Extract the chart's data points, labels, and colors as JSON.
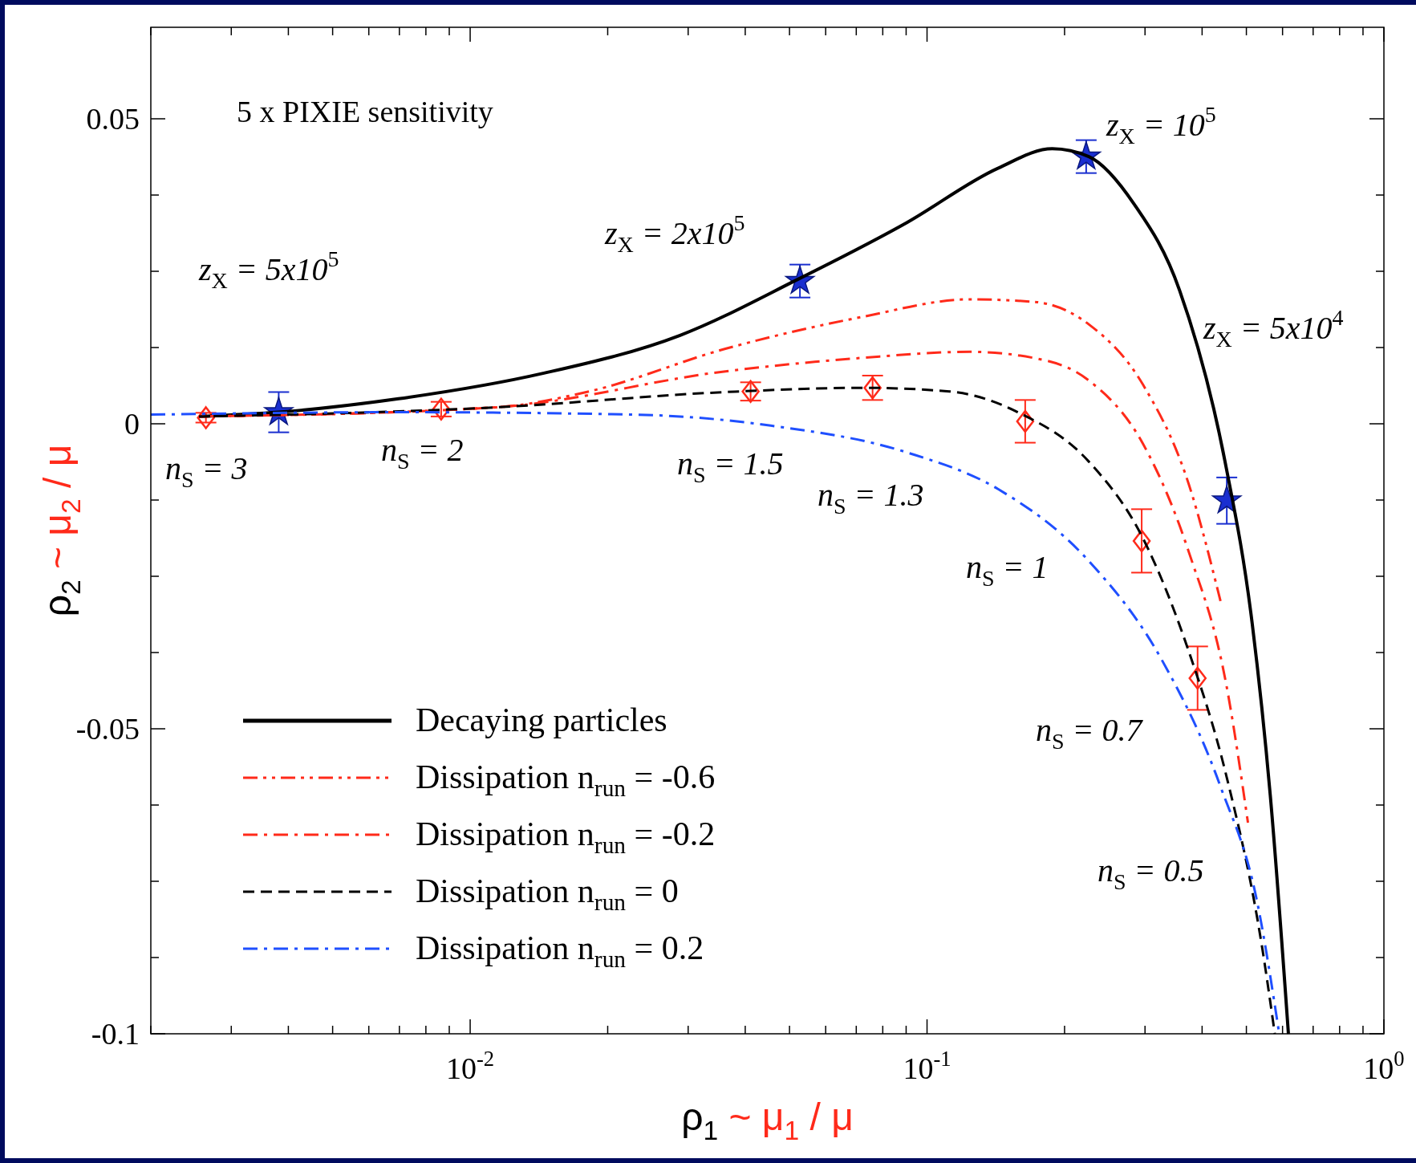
{
  "chart_data": {
    "type": "line",
    "xlabel": "ρ$_{1}$  ~ μ$_{1}$ / μ",
    "ylabel": "ρ$_{2}$  ~ μ$_{2}$ / μ",
    "log": "x",
    "xlim": [
      0.002,
      1
    ],
    "ylim": [
      -0.1,
      0.065
    ],
    "xticks": [
      {
        "value": 0.002,
        "label": null
      },
      {
        "value": 0.003,
        "label": null
      },
      {
        "value": 0.004,
        "label": null
      },
      {
        "value": 0.005,
        "label": null
      },
      {
        "value": 0.006,
        "label": null
      },
      {
        "value": 0.007,
        "label": null
      },
      {
        "value": 0.008,
        "label": null
      },
      {
        "value": 0.009,
        "label": null
      },
      {
        "value": 0.01,
        "label": "10$^{-2}$"
      },
      {
        "value": 0.02,
        "label": null
      },
      {
        "value": 0.03,
        "label": null
      },
      {
        "value": 0.04,
        "label": null
      },
      {
        "value": 0.05,
        "label": null
      },
      {
        "value": 0.06,
        "label": null
      },
      {
        "value": 0.07,
        "label": null
      },
      {
        "value": 0.08,
        "label": null
      },
      {
        "value": 0.09,
        "label": null
      },
      {
        "value": 0.1,
        "label": "10$^{-1}$"
      },
      {
        "value": 0.2,
        "label": null
      },
      {
        "value": 0.3,
        "label": null
      },
      {
        "value": 0.4,
        "label": null
      },
      {
        "value": 0.5,
        "label": null
      },
      {
        "value": 0.6,
        "label": null
      },
      {
        "value": 0.7,
        "label": null
      },
      {
        "value": 0.8,
        "label": null
      },
      {
        "value": 0.9,
        "label": null
      },
      {
        "value": 1,
        "label": "10$^{0}$"
      }
    ],
    "yticks": [
      -0.1,
      {
        "value": -0.0875,
        "label": null
      },
      {
        "value": -0.075,
        "label": null
      },
      {
        "value": -0.0625,
        "label": null
      },
      -0.05,
      {
        "value": -0.0375,
        "label": null
      },
      {
        "value": -0.025,
        "label": null
      },
      {
        "value": -0.0125,
        "label": null
      },
      0,
      {
        "value": 0.0125,
        "label": null
      },
      {
        "value": 0.025,
        "label": null
      },
      {
        "value": 0.0375,
        "label": null
      },
      0.05
    ],
    "grid": false,
    "legend": "bottom left",
    "series": [
      {
        "name": "Decaying particles",
        "color": "#000000",
        "line_style": "solid",
        "x": [
          0.00255,
          0.00381,
          0.00697,
          0.0145,
          0.0288,
          0.0522,
          0.0904,
          0.143,
          0.188,
          0.226,
          0.284,
          0.357,
          0.449,
          0.515,
          0.564,
          0.618
        ],
        "values": [
          0.0012,
          0.0019,
          0.0041,
          0.0083,
          0.0145,
          0.0237,
          0.033,
          0.0419,
          0.0451,
          0.0438,
          0.036,
          0.0219,
          -0.0062,
          -0.0328,
          -0.0609,
          -0.1
        ]
      },
      {
        "name": "Dissipation n$_{run}$ = -0.6",
        "color": "#ff2a1a",
        "line_style": "dashdotdot",
        "x": [
          0.00255,
          0.0114,
          0.0182,
          0.0362,
          0.0719,
          0.124,
          0.171,
          0.226,
          0.297,
          0.374,
          0.439
        ],
        "values": [
          0.0012,
          0.0027,
          0.0053,
          0.0123,
          0.0175,
          0.0204,
          0.02,
          0.0163,
          0.0064,
          -0.0099,
          -0.0291
        ]
      },
      {
        "name": "Dissipation n$_{run}$ = -0.2",
        "color": "#ff2a1a",
        "line_style": "dashdot",
        "x": [
          0.00255,
          0.0114,
          0.0362,
          0.0719,
          0.124,
          0.171,
          0.226,
          0.297,
          0.374,
          0.453,
          0.504
        ],
        "values": [
          0.0012,
          0.0027,
          0.0086,
          0.0108,
          0.0118,
          0.0108,
          0.0071,
          -0.0033,
          -0.021,
          -0.0432,
          -0.0654
        ]
      },
      {
        "name": "Dissipation n$_{run}$ = 0",
        "color": "#000000",
        "line_style": "dashed",
        "x": [
          0.00255,
          0.0114,
          0.0362,
          0.0719,
          0.112,
          0.158,
          0.226,
          0.297,
          0.374,
          0.453,
          0.542,
          0.577
        ],
        "values": [
          0.0012,
          0.0027,
          0.0052,
          0.0059,
          0.0053,
          0.0019,
          -0.0062,
          -0.0188,
          -0.0373,
          -0.058,
          -0.0861,
          -0.1
        ]
      },
      {
        "name": "Dissipation n$_{run}$ = 0.2",
        "color": "#1f4fff",
        "line_style": "dashdot",
        "x": [
          0.002,
          0.00697,
          0.0229,
          0.0455,
          0.0904,
          0.143,
          0.226,
          0.327,
          0.439,
          0.529,
          0.59
        ],
        "values": [
          0.0015,
          0.0019,
          0.0015,
          -0.0003,
          -0.0047,
          -0.0107,
          -0.0225,
          -0.0388,
          -0.0595,
          -0.0787,
          -0.1
        ]
      },
      {
        "type": "scatter",
        "color": "#1a2fd0",
        "marker": "star",
        "x": [
          0.00381,
          0.0527,
          0.223,
          0.453
        ],
        "values": [
          0.0019,
          0.0234,
          0.0438,
          -0.0126
        ],
        "errors": [
          0.0033,
          0.0027,
          0.0027,
          0.0038
        ]
      },
      {
        "type": "scatter",
        "color": "#ff2a1a",
        "marker": "diamond",
        "x": [
          0.00264,
          0.00864,
          0.0411,
          0.076,
          0.164,
          0.295,
          0.391
        ],
        "values": [
          0.001,
          0.0024,
          0.0053,
          0.0059,
          0.0004,
          -0.0192,
          -0.0417
        ],
        "errors": [
          0.0008,
          0.0012,
          0.0015,
          0.002,
          0.0035,
          0.0052,
          0.0052
        ]
      }
    ],
    "annotations": [
      "5 x PIXIE sensitivity",
      "z$_{X}$ = 5x10$^{5}$",
      "z$_{X}$ = 2x10$^{5}$",
      "z$_{X}$ = 10$^{5}$",
      "z$_{X}$ = 5x10$^{4}$",
      "n$_{S}$ = 3",
      "n$_{S}$ = 2",
      "n$_{S}$ = 1.5",
      "n$_{S}$ = 1.3",
      "n$_{S}$ = 1",
      "n$_{S}$ = 0.7",
      "n$_{S}$ = 0.5"
    ]
  }
}
